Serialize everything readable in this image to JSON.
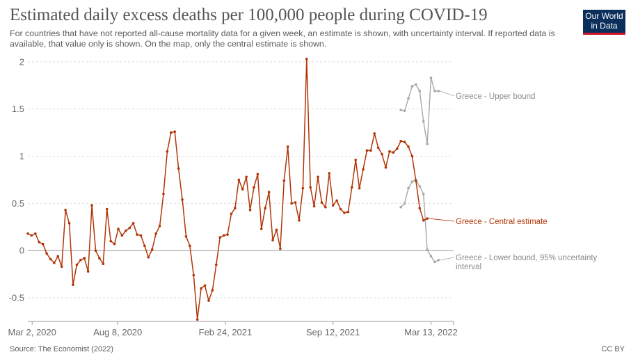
{
  "header": {
    "title": "Estimated daily excess deaths per 100,000 people during COVID-19",
    "subtitle": "For countries that have not reported all-cause mortality data for a given week, an estimate is shown, with uncertainty interval. If reported data is available, that value only is shown. On the map, only the central estimate is shown.",
    "logo_line1": "Our World",
    "logo_line2": "in Data"
  },
  "footer": {
    "source": "Source: The Economist (2022)",
    "license": "CC BY"
  },
  "colors": {
    "central": "#b13507",
    "bounds": "#a8a8a8",
    "grid": "#dddddd",
    "zero": "#999999"
  },
  "chart_data": {
    "type": "line",
    "title": "Estimated daily excess deaths per 100,000 people during COVID-19",
    "ylim": [
      -0.75,
      2.05
    ],
    "yticks": [
      -0.5,
      0,
      0.5,
      1,
      1.5,
      2
    ],
    "ytick_labels": [
      "-0.5",
      "0",
      "0.5",
      "1",
      "1.5",
      "2"
    ],
    "xticks": [
      {
        "date": "2020-03-02",
        "label": "Mar 2, 2020"
      },
      {
        "date": "2020-08-08",
        "label": "Aug 8, 2020"
      },
      {
        "date": "2021-02-24",
        "label": "Feb 24, 2021"
      },
      {
        "date": "2021-09-12",
        "label": "Sep 12, 2021"
      },
      {
        "date": "2022-03-13",
        "label": "Mar 13, 2022"
      }
    ],
    "x_start": "2020-02-23",
    "x_end": "2022-04-24",
    "series": [
      {
        "name": "Greece - Central estimate",
        "step_days": 7,
        "values": [
          0.18,
          0.16,
          0.18,
          0.09,
          0.07,
          -0.03,
          -0.09,
          -0.13,
          -0.06,
          -0.17,
          0.43,
          0.29,
          -0.36,
          -0.15,
          -0.1,
          -0.08,
          -0.22,
          0.48,
          0.0,
          -0.08,
          -0.14,
          0.44,
          0.1,
          0.07,
          0.23,
          0.16,
          0.21,
          0.24,
          0.29,
          0.17,
          0.16,
          0.05,
          -0.07,
          0.01,
          0.18,
          0.26,
          0.6,
          1.05,
          1.25,
          1.26,
          0.87,
          0.54,
          0.15,
          0.05,
          -0.26,
          -0.73,
          -0.4,
          -0.37,
          -0.53,
          -0.42,
          -0.15,
          0.14,
          0.16,
          0.17,
          0.39,
          0.45,
          0.75,
          0.65,
          0.78,
          0.43,
          0.67,
          0.81,
          0.23,
          0.45,
          0.62,
          0.11,
          0.22,
          0.02,
          0.74,
          1.1,
          0.5,
          0.51,
          0.32,
          0.66,
          2.03,
          0.67,
          0.47,
          0.78,
          0.51,
          0.46,
          0.82,
          0.48,
          0.53,
          0.44,
          0.4,
          0.41,
          0.67,
          0.96,
          0.66,
          0.86,
          1.06,
          1.06,
          1.24,
          1.09,
          1.02,
          0.88,
          1.05,
          1.04,
          1.08,
          1.16,
          1.15,
          1.1,
          1.0,
          0.74,
          0.45,
          0.32,
          0.34
        ]
      },
      {
        "name": "Greece - Upper bound",
        "start_date": "2022-01-16",
        "step_days": 7,
        "values": [
          1.49,
          1.48,
          1.61,
          1.74,
          1.76,
          1.69,
          1.37,
          1.13,
          1.83,
          1.69,
          1.69
        ]
      },
      {
        "name": "Greece - Lower bound, 95% uncertainty interval",
        "start_date": "2022-01-16",
        "step_days": 7,
        "values": [
          0.46,
          0.5,
          0.66,
          0.73,
          0.75,
          0.68,
          0.6,
          0.01,
          -0.06,
          -0.12,
          -0.1
        ]
      }
    ]
  }
}
